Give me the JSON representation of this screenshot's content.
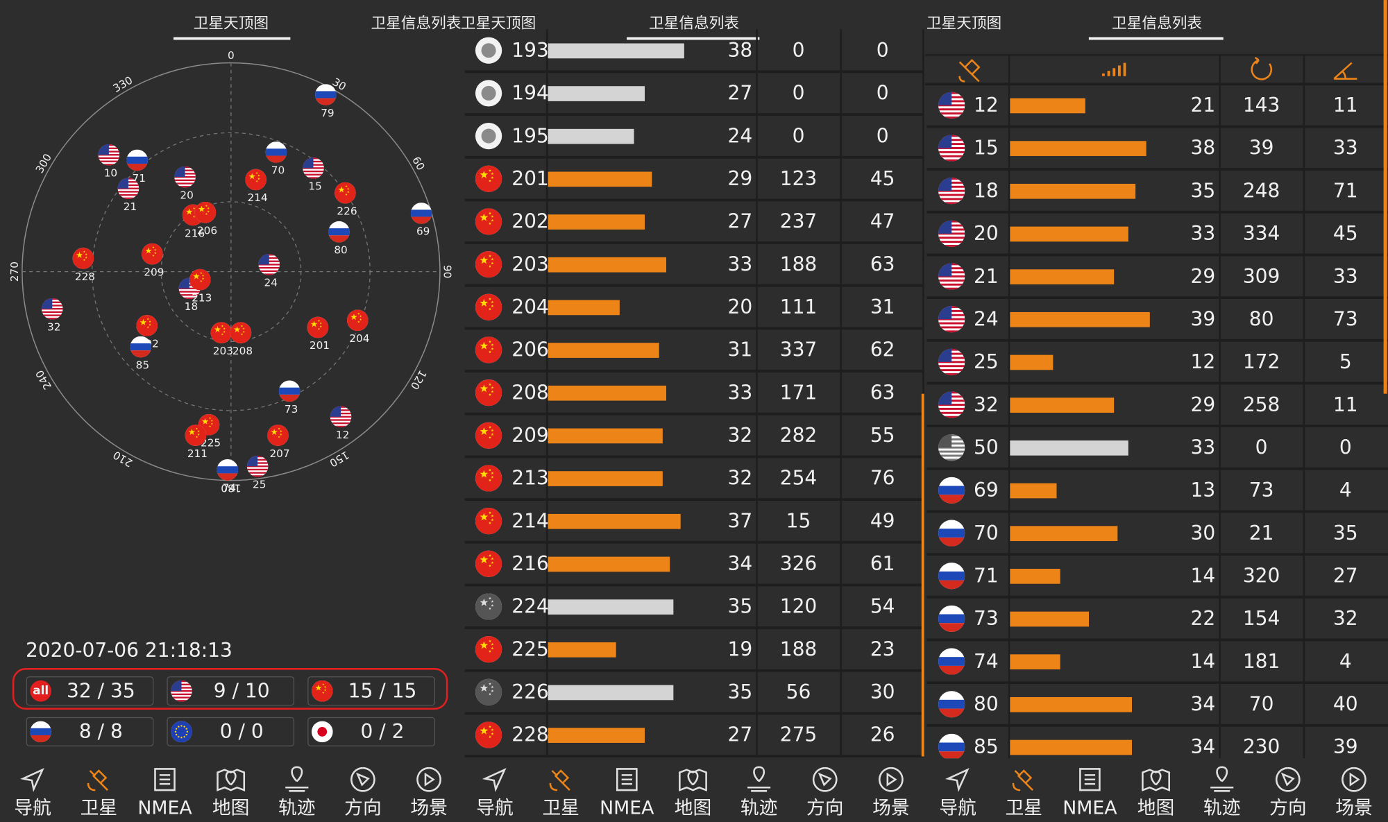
{
  "sky_panel": {
    "tabs": [
      "卫星天顶图",
      "卫星信息列表"
    ],
    "compass_ticks": [
      0,
      30,
      60,
      90,
      120,
      150,
      180,
      210,
      240,
      270,
      300,
      330
    ],
    "satellites": [
      {
        "id": 79,
        "flag": "ru"
      },
      {
        "id": 10,
        "flag": "us"
      },
      {
        "id": 71,
        "flag": "ru"
      },
      {
        "id": 21,
        "flag": "us"
      },
      {
        "id": 20,
        "flag": "us"
      },
      {
        "id": 70,
        "flag": "ru"
      },
      {
        "id": 15,
        "flag": "us"
      },
      {
        "id": 214,
        "flag": "cn"
      },
      {
        "id": 226,
        "flag": "cn"
      },
      {
        "id": 69,
        "flag": "ru"
      },
      {
        "id": 80,
        "flag": "ru"
      },
      {
        "id": 216,
        "flag": "cn"
      },
      {
        "id": 206,
        "flag": "cn"
      },
      {
        "id": 228,
        "flag": "cn"
      },
      {
        "id": 209,
        "flag": "cn"
      },
      {
        "id": 24,
        "flag": "us"
      },
      {
        "id": 18,
        "flag": "us"
      },
      {
        "id": 213,
        "flag": "cn"
      },
      {
        "id": 32,
        "flag": "us"
      },
      {
        "id": 202,
        "flag": "cn"
      },
      {
        "id": 85,
        "flag": "ru"
      },
      {
        "id": 203,
        "flag": "cn"
      },
      {
        "id": 208,
        "flag": "cn"
      },
      {
        "id": 201,
        "flag": "cn"
      },
      {
        "id": 204,
        "flag": "cn"
      },
      {
        "id": 73,
        "flag": "ru"
      },
      {
        "id": 12,
        "flag": "us"
      },
      {
        "id": 207,
        "flag": "cn"
      },
      {
        "id": 225,
        "flag": "cn"
      },
      {
        "id": 211,
        "flag": "cn"
      },
      {
        "id": 74,
        "flag": "ru"
      },
      {
        "id": 25,
        "flag": "us"
      }
    ],
    "datetime": "2020-07-06  21:18:13",
    "all_label": "all",
    "stats": [
      {
        "flag": "all",
        "text": "32 / 35"
      },
      {
        "flag": "us",
        "text": "9 / 10"
      },
      {
        "flag": "cn",
        "text": "15 / 15"
      },
      {
        "flag": "ru",
        "text": "8 / 8"
      },
      {
        "flag": "eu",
        "text": "0 / 0"
      },
      {
        "flag": "jp",
        "text": "0 / 2"
      }
    ]
  },
  "list_panel_1": {
    "tabs": [
      "卫星天顶图",
      "卫星信息列表"
    ],
    "rows": [
      {
        "flag": "none",
        "id": 193,
        "snr": 38,
        "azimuth": 0,
        "elevation": 0,
        "used": false
      },
      {
        "flag": "none",
        "id": 194,
        "snr": 27,
        "azimuth": 0,
        "elevation": 0,
        "used": false
      },
      {
        "flag": "none",
        "id": 195,
        "snr": 24,
        "azimuth": 0,
        "elevation": 0,
        "used": false
      },
      {
        "flag": "cn",
        "id": 201,
        "snr": 29,
        "azimuth": 123,
        "elevation": 45,
        "used": true
      },
      {
        "flag": "cn",
        "id": 202,
        "snr": 27,
        "azimuth": 237,
        "elevation": 47,
        "used": true
      },
      {
        "flag": "cn",
        "id": 203,
        "snr": 33,
        "azimuth": 188,
        "elevation": 63,
        "used": true
      },
      {
        "flag": "cn",
        "id": 204,
        "snr": 20,
        "azimuth": 111,
        "elevation": 31,
        "used": true
      },
      {
        "flag": "cn",
        "id": 206,
        "snr": 31,
        "azimuth": 337,
        "elevation": 62,
        "used": true
      },
      {
        "flag": "cn",
        "id": 208,
        "snr": 33,
        "azimuth": 171,
        "elevation": 63,
        "used": true
      },
      {
        "flag": "cn",
        "id": 209,
        "snr": 32,
        "azimuth": 282,
        "elevation": 55,
        "used": true
      },
      {
        "flag": "cn",
        "id": 213,
        "snr": 32,
        "azimuth": 254,
        "elevation": 76,
        "used": true
      },
      {
        "flag": "cn",
        "id": 214,
        "snr": 37,
        "azimuth": 15,
        "elevation": 49,
        "used": true
      },
      {
        "flag": "cn",
        "id": 216,
        "snr": 34,
        "azimuth": 326,
        "elevation": 61,
        "used": true
      },
      {
        "flag": "cn-dim",
        "id": 224,
        "snr": 35,
        "azimuth": 120,
        "elevation": 54,
        "used": false
      },
      {
        "flag": "cn",
        "id": 225,
        "snr": 19,
        "azimuth": 188,
        "elevation": 23,
        "used": true
      },
      {
        "flag": "cn-dim",
        "id": 226,
        "snr": 35,
        "azimuth": 56,
        "elevation": 30,
        "used": false
      },
      {
        "flag": "cn",
        "id": 228,
        "snr": 27,
        "azimuth": 275,
        "elevation": 26,
        "used": true
      }
    ]
  },
  "list_panel_2": {
    "tabs": [
      "卫星天顶图",
      "卫星信息列表"
    ],
    "rows": [
      {
        "flag": "us",
        "id": 12,
        "snr": 21,
        "azimuth": 143,
        "elevation": 11,
        "used": true
      },
      {
        "flag": "us",
        "id": 15,
        "snr": 38,
        "azimuth": 39,
        "elevation": 33,
        "used": true
      },
      {
        "flag": "us",
        "id": 18,
        "snr": 35,
        "azimuth": 248,
        "elevation": 71,
        "used": true
      },
      {
        "flag": "us",
        "id": 20,
        "snr": 33,
        "azimuth": 334,
        "elevation": 45,
        "used": true
      },
      {
        "flag": "us",
        "id": 21,
        "snr": 29,
        "azimuth": 309,
        "elevation": 33,
        "used": true
      },
      {
        "flag": "us",
        "id": 24,
        "snr": 39,
        "azimuth": 80,
        "elevation": 73,
        "used": true
      },
      {
        "flag": "us",
        "id": 25,
        "snr": 12,
        "azimuth": 172,
        "elevation": 5,
        "used": true
      },
      {
        "flag": "us",
        "id": 32,
        "snr": 29,
        "azimuth": 258,
        "elevation": 11,
        "used": true
      },
      {
        "flag": "us-dim",
        "id": 50,
        "snr": 33,
        "azimuth": 0,
        "elevation": 0,
        "used": false
      },
      {
        "flag": "ru",
        "id": 69,
        "snr": 13,
        "azimuth": 73,
        "elevation": 4,
        "used": true
      },
      {
        "flag": "ru",
        "id": 70,
        "snr": 30,
        "azimuth": 21,
        "elevation": 35,
        "used": true
      },
      {
        "flag": "ru",
        "id": 71,
        "snr": 14,
        "azimuth": 320,
        "elevation": 27,
        "used": true
      },
      {
        "flag": "ru",
        "id": 73,
        "snr": 22,
        "azimuth": 154,
        "elevation": 32,
        "used": true
      },
      {
        "flag": "ru",
        "id": 74,
        "snr": 14,
        "azimuth": 181,
        "elevation": 4,
        "used": true
      },
      {
        "flag": "ru",
        "id": 80,
        "snr": 34,
        "azimuth": 70,
        "elevation": 40,
        "used": true
      },
      {
        "flag": "ru",
        "id": 85,
        "snr": 34,
        "azimuth": 230,
        "elevation": 39,
        "used": true
      }
    ]
  },
  "nav": [
    "导航",
    "卫星",
    "NMEA",
    "地图",
    "轨迹",
    "方向",
    "场景"
  ],
  "nav_active": 1
}
